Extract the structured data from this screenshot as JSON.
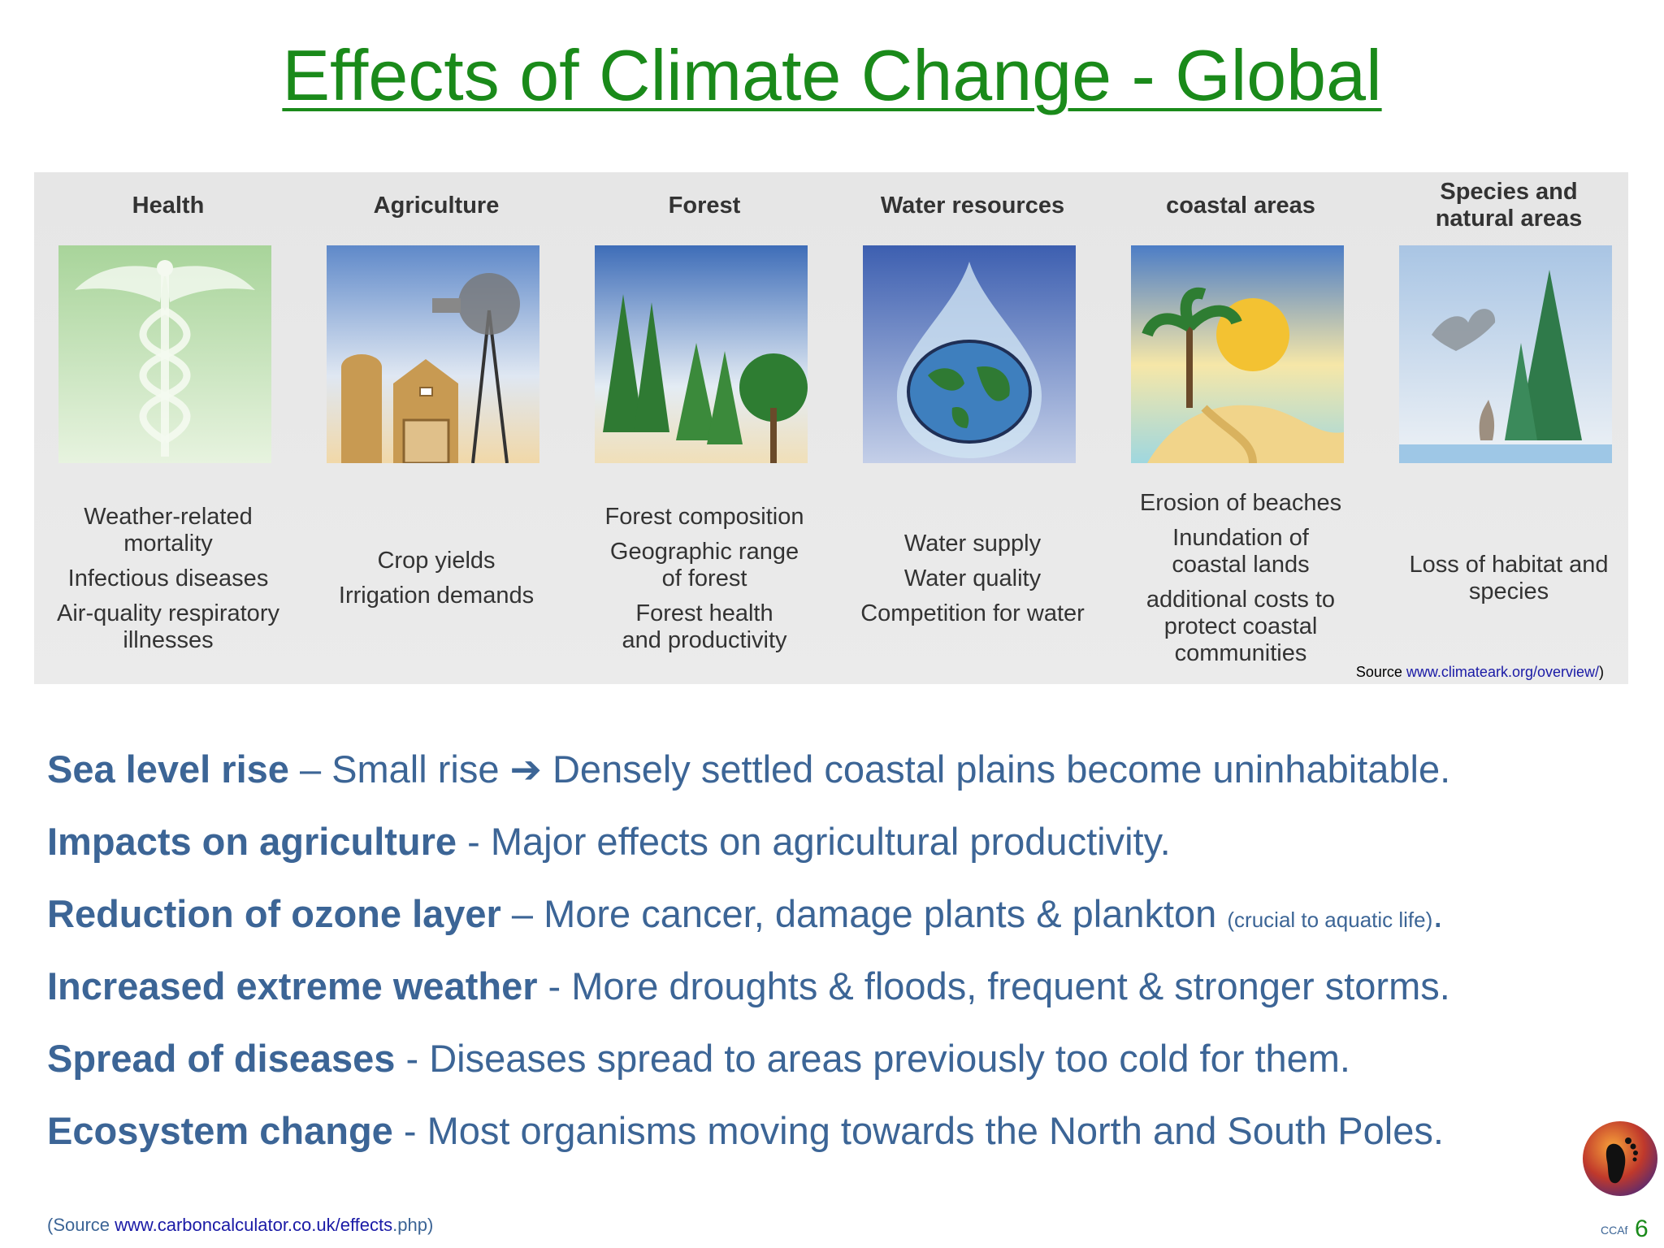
{
  "slide": {
    "title": "Effects of Climate Change - Global",
    "columns": [
      {
        "heading": "Health",
        "impacts": [
          "Weather-related\nmortality",
          "Infectious diseases",
          "Air-quality respiratory\nillnesses"
        ]
      },
      {
        "heading": "Agriculture",
        "impacts": [
          "Crop yields",
          "Irrigation demands"
        ]
      },
      {
        "heading": "Forest",
        "impacts": [
          "Forest composition",
          "Geographic range\nof forest",
          "Forest health\nand productivity"
        ]
      },
      {
        "heading": "Water resources",
        "impacts": [
          "Water supply",
          "Water quality",
          "Competition for water"
        ]
      },
      {
        "heading": "coastal areas",
        "impacts": [
          "Erosion of beaches",
          "Inundation of\ncoastal lands",
          "additional costs to\nprotect coastal\ncommunities"
        ]
      },
      {
        "heading": "Species and\nnatural areas",
        "impacts": [
          "Loss of habitat and\nspecies"
        ]
      }
    ],
    "image_source": {
      "prefix": "Source ",
      "link": "www.climateark.org/overview/",
      "suffix": ")"
    },
    "bullets": [
      {
        "term": "Sea level rise",
        "sep": " – ",
        "text": "Small rise ➔ Densely settled coastal plains become uninhabitable.",
        "note": "",
        "tail": ""
      },
      {
        "term": "Impacts on agriculture",
        "sep": " - ",
        "text": "Major effects on agricultural productivity.",
        "note": "",
        "tail": ""
      },
      {
        "term": "Reduction of ozone layer",
        "sep": " – ",
        "text": "More cancer, damage plants & plankton ",
        "note": "(crucial to aquatic life)",
        "tail": "."
      },
      {
        "term": "Increased extreme weather",
        "sep": " - ",
        "text": "More droughts & floods, frequent & stronger storms.",
        "note": "",
        "tail": ""
      },
      {
        "term": "Spread of diseases",
        "sep": " - ",
        "text": "Diseases spread to areas previously too cold for them.",
        "note": "",
        "tail": ""
      },
      {
        "term": "Ecosystem change",
        "sep": " - ",
        "text": "Most organisms moving towards the North and South Poles.",
        "note": "",
        "tail": ""
      }
    ],
    "footer_source": {
      "prefix": "(Source ",
      "link": "www.carboncalculator.co.uk/effects",
      "suffix": ".php)"
    },
    "logo_text": "CCAf",
    "page_number": "6"
  },
  "colors": {
    "title": "#1a8a1a",
    "body": "#3c6596",
    "link": "#1a1aa6"
  },
  "icons": [
    "caduceus-icon",
    "farm-windmill-icon",
    "forest-trees-icon",
    "globe-water-drop-icon",
    "beach-sun-palm-icon",
    "bird-tree-icon",
    "footprint-logo-icon"
  ]
}
